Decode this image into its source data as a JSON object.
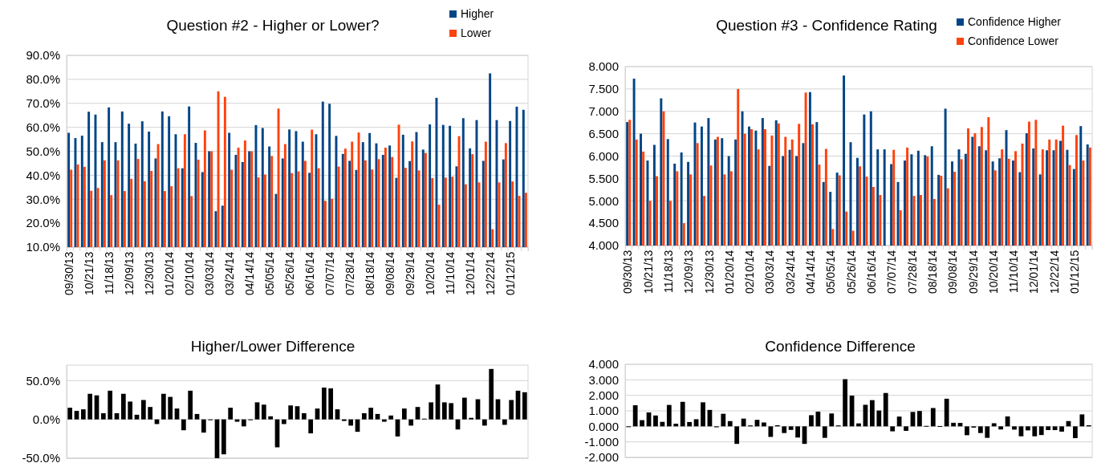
{
  "chart_data": [
    {
      "type": "bar",
      "title": "Question #2 - Higher or Lower?",
      "legend": "top right",
      "grid": "y",
      "categories": [
        "09/30/13",
        null,
        null,
        "10/21/13",
        null,
        null,
        "11/18/13",
        null,
        null,
        "12/09/13",
        null,
        null,
        "12/30/13",
        null,
        null,
        "01/20/14",
        null,
        null,
        "02/10/14",
        null,
        null,
        "03/03/14",
        null,
        null,
        "03/24/14",
        null,
        null,
        "04/14/14",
        null,
        null,
        "05/05/14",
        null,
        null,
        "05/26/14",
        null,
        null,
        "06/16/14",
        null,
        null,
        "07/07/14",
        null,
        null,
        "07/28/14",
        null,
        null,
        "08/18/14",
        null,
        null,
        "09/08/14",
        null,
        null,
        "09/29/14",
        null,
        null,
        "10/20/14",
        null,
        null,
        "11/10/14",
        null,
        null,
        "12/01/14",
        null,
        null,
        "12/22/14",
        null,
        null,
        "01/12/15",
        null,
        null
      ],
      "ylim": [
        10,
        90
      ],
      "yticks": [
        {
          "value": 10,
          "label": "10.0%"
        },
        {
          "value": 20,
          "label": "20.0%"
        },
        {
          "value": 30,
          "label": "30.0%"
        },
        {
          "value": 40,
          "label": "40.0%"
        },
        {
          "value": 50,
          "label": "50.0%"
        },
        {
          "value": 60,
          "label": "60.0%"
        },
        {
          "value": 70,
          "label": "70.0%"
        },
        {
          "value": 80,
          "label": "80.0%"
        },
        {
          "value": 90,
          "label": "90.0%"
        }
      ],
      "series": [
        {
          "name": "Higher",
          "color": "#004586",
          "values": [
            57.7,
            55.5,
            56.5,
            66.5,
            65.3,
            53.8,
            68.3,
            53.8,
            66.6,
            61.5,
            53.2,
            62.5,
            58.2,
            47.0,
            66.6,
            64.6,
            57.1,
            42.9,
            68.7,
            53.5,
            41.3,
            50.0,
            25.0,
            27.3,
            57.7,
            48.5,
            45.5,
            50.0,
            60.9,
            59.7,
            52.0,
            32.2,
            47.0,
            59.1,
            58.4,
            54.0,
            41.0,
            57.1,
            70.7,
            69.8,
            56.4,
            48.9,
            46.0,
            42.2,
            53.8,
            57.6,
            53.3,
            48.5,
            52.4,
            38.9,
            56.9,
            45.9,
            58.0,
            50.7,
            61.2,
            72.3,
            61.0,
            60.6,
            43.7,
            63.8,
            51.2,
            63.0,
            46.0,
            82.5,
            63.0,
            46.6,
            62.6,
            68.6,
            67.3
          ]
        },
        {
          "name": "Lower",
          "color": "#ff420e",
          "values": [
            42.3,
            44.5,
            43.5,
            33.5,
            34.7,
            46.2,
            31.7,
            46.2,
            33.4,
            38.5,
            46.8,
            37.5,
            41.8,
            53.0,
            33.4,
            35.4,
            42.9,
            57.1,
            31.3,
            46.5,
            58.7,
            50.0,
            75.0,
            72.7,
            42.3,
            51.5,
            54.5,
            50.0,
            39.1,
            40.3,
            48.0,
            67.8,
            53.0,
            40.9,
            41.6,
            46.0,
            59.0,
            42.9,
            29.3,
            30.2,
            43.6,
            51.1,
            54.0,
            57.8,
            46.2,
            42.4,
            46.7,
            51.5,
            47.6,
            61.1,
            43.1,
            54.1,
            42.0,
            49.3,
            38.8,
            27.7,
            39.0,
            39.4,
            56.3,
            36.2,
            48.8,
            37.0,
            54.0,
            17.5,
            37.0,
            53.4,
            37.4,
            31.4,
            32.7
          ]
        }
      ]
    },
    {
      "type": "bar",
      "title": "Question #3 - Confidence Rating",
      "legend": "top right",
      "grid": "y",
      "categories": [
        "09/30/13",
        null,
        null,
        "10/21/13",
        null,
        null,
        "11/18/13",
        null,
        null,
        "12/09/13",
        null,
        null,
        "12/30/13",
        null,
        null,
        "01/20/14",
        null,
        null,
        "02/10/14",
        null,
        null,
        "03/03/14",
        null,
        null,
        "03/24/14",
        null,
        null,
        "04/14/14",
        null,
        null,
        "05/05/14",
        null,
        null,
        "05/26/14",
        null,
        null,
        "06/16/14",
        null,
        null,
        "07/07/14",
        null,
        null,
        "07/28/14",
        null,
        null,
        "08/18/14",
        null,
        null,
        "09/08/14",
        null,
        null,
        "09/29/14",
        null,
        null,
        "10/20/14",
        null,
        null,
        "11/10/14",
        null,
        null,
        "12/01/14",
        null,
        null,
        "12/22/14",
        null,
        null,
        "01/12/15",
        null,
        null
      ],
      "ylim": [
        4,
        8
      ],
      "yticks": [
        {
          "value": 4,
          "label": "4.000"
        },
        {
          "value": 4.5,
          "label": "4.500"
        },
        {
          "value": 5,
          "label": "5.000"
        },
        {
          "value": 5.5,
          "label": "5.500"
        },
        {
          "value": 6,
          "label": "6.000"
        },
        {
          "value": 6.5,
          "label": "6.500"
        },
        {
          "value": 7,
          "label": "7.000"
        },
        {
          "value": 7.5,
          "label": "7.500"
        },
        {
          "value": 8,
          "label": "8.000"
        }
      ],
      "series": [
        {
          "name": "Confidence Higher",
          "color": "#004586",
          "values": [
            6.76,
            7.73,
            6.5,
            5.9,
            6.25,
            7.29,
            6.38,
            5.83,
            6.08,
            5.87,
            6.75,
            6.66,
            6.85,
            6.37,
            6.4,
            6.0,
            6.37,
            7.0,
            6.66,
            6.57,
            6.85,
            5.78,
            6.8,
            6.0,
            6.14,
            6.0,
            6.29,
            7.43,
            6.76,
            5.42,
            5.2,
            5.63,
            7.8,
            6.31,
            5.96,
            6.93,
            7.0,
            6.15,
            6.15,
            5.82,
            5.42,
            5.9,
            6.04,
            6.12,
            6.02,
            6.22,
            5.58,
            7.06,
            5.88,
            6.15,
            6.05,
            6.43,
            6.22,
            6.13,
            5.88,
            5.95,
            6.58,
            5.9,
            5.64,
            6.51,
            6.17,
            5.59,
            6.13,
            6.13,
            6.34,
            6.14,
            5.71,
            6.67,
            6.26
          ]
        },
        {
          "name": "Confidence Lower",
          "color": "#ff420e",
          "values": [
            6.81,
            6.37,
            6.1,
            5.0,
            5.55,
            7.0,
            5.0,
            5.66,
            4.5,
            5.59,
            6.29,
            5.11,
            5.79,
            6.43,
            5.59,
            5.66,
            7.5,
            6.5,
            6.6,
            6.15,
            6.6,
            6.46,
            6.73,
            6.43,
            6.37,
            6.72,
            7.42,
            6.71,
            5.81,
            6.16,
            4.37,
            5.57,
            4.76,
            4.33,
            5.77,
            5.54,
            5.31,
            5.13,
            null,
            6.14,
            4.79,
            6.19,
            5.11,
            5.13,
            5.99,
            5.04,
            5.56,
            5.28,
            5.65,
            5.93,
            6.62,
            6.51,
            6.65,
            6.87,
            5.68,
            6.15,
            5.94,
            6.11,
            6.28,
            6.77,
            6.81,
            6.15,
            6.37,
            6.37,
            6.68,
            5.8,
            6.47,
            5.9,
            6.19
          ]
        }
      ]
    },
    {
      "type": "bar",
      "title": "Higher/Lower Difference",
      "grid": "y",
      "tick_labels": "y",
      "categories": [
        null,
        null,
        null,
        null,
        null,
        null,
        null,
        null,
        null,
        null,
        null,
        null,
        null,
        null,
        null,
        null,
        null,
        null,
        null,
        null,
        null,
        null,
        null,
        null,
        null,
        null,
        null,
        null,
        null,
        null,
        null,
        null,
        null,
        null,
        null,
        null,
        null,
        null,
        null,
        null,
        null,
        null,
        null,
        null,
        null,
        null,
        null,
        null,
        null,
        null,
        null,
        null,
        null,
        null,
        null,
        null,
        null,
        null,
        null,
        null,
        null,
        null,
        null,
        null,
        null,
        null,
        null,
        null,
        null
      ],
      "ylim": [
        -50,
        70
      ],
      "yticks": [
        {
          "value": -50,
          "label": "-50.0%"
        },
        {
          "value": 0,
          "label": "0.0%"
        },
        {
          "value": 50,
          "label": "50.0%"
        }
      ],
      "series": [
        {
          "color": "#000000",
          "values": [
            15,
            11,
            13,
            33,
            31,
            8,
            37,
            8,
            33,
            23,
            6,
            25,
            16,
            -6,
            33,
            29,
            14,
            -14,
            37,
            7,
            -17,
            0,
            -50,
            -45,
            15,
            -3,
            -9,
            0,
            22,
            19,
            4,
            -36,
            -6,
            18,
            17,
            8,
            -18,
            14,
            41,
            40,
            13,
            -2,
            -8,
            -16,
            8,
            15,
            7,
            -3,
            5,
            -22,
            14,
            -8,
            16,
            1,
            22,
            45,
            22,
            21,
            -13,
            28,
            2,
            26,
            -8,
            65,
            26,
            -7,
            25,
            37,
            35
          ]
        }
      ]
    },
    {
      "type": "bar",
      "title": "Confidence Difference",
      "grid": "y",
      "tick_labels": "y",
      "categories": [
        null,
        null,
        null,
        null,
        null,
        null,
        null,
        null,
        null,
        null,
        null,
        null,
        null,
        null,
        null,
        null,
        null,
        null,
        null,
        null,
        null,
        null,
        null,
        null,
        null,
        null,
        null,
        null,
        null,
        null,
        null,
        null,
        null,
        null,
        null,
        null,
        null,
        null,
        null,
        null,
        null,
        null,
        null,
        null,
        null,
        null,
        null,
        null,
        null,
        null,
        null,
        null,
        null,
        null,
        null,
        null,
        null,
        null,
        null,
        null,
        null,
        null,
        null,
        null,
        null,
        null,
        null,
        null,
        null
      ],
      "ylim": [
        -2,
        4
      ],
      "yticks": [
        {
          "value": -2,
          "label": "-2.000"
        },
        {
          "value": -1,
          "label": "-1.000"
        },
        {
          "value": 0,
          "label": "0.000"
        },
        {
          "value": 1,
          "label": "1.000"
        },
        {
          "value": 2,
          "label": "2.000"
        },
        {
          "value": 3,
          "label": "3.000"
        },
        {
          "value": 4,
          "label": "4.000"
        }
      ],
      "series": [
        {
          "color": "#000000",
          "values": [
            -0.05,
            1.36,
            0.4,
            0.9,
            0.7,
            0.29,
            1.38,
            0.17,
            1.58,
            0.28,
            0.46,
            1.55,
            1.06,
            -0.06,
            0.81,
            0.34,
            -1.13,
            0.5,
            0.06,
            0.42,
            0.25,
            -0.68,
            0.07,
            -0.43,
            -0.23,
            -0.72,
            -1.13,
            0.72,
            0.95,
            -0.74,
            0.83,
            0.06,
            3.04,
            1.98,
            0.19,
            1.39,
            1.69,
            1.02,
            2.15,
            -0.32,
            0.63,
            -0.29,
            0.93,
            0.99,
            0.03,
            1.18,
            0.02,
            1.78,
            0.23,
            0.22,
            -0.57,
            -0.08,
            -0.43,
            -0.74,
            0.2,
            -0.2,
            0.64,
            -0.21,
            -0.64,
            -0.26,
            -0.64,
            -0.56,
            -0.24,
            -0.24,
            -0.34,
            0.34,
            -0.76,
            0.77,
            0.07
          ]
        }
      ]
    }
  ]
}
